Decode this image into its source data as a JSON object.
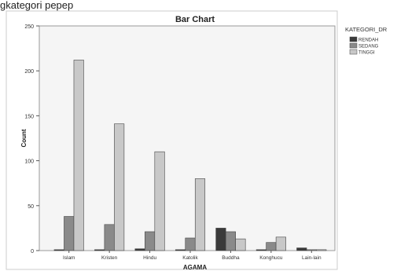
{
  "top_text": "gkategori pepep",
  "chart_data": {
    "type": "bar",
    "title": "Bar Chart",
    "xlabel": "AGAMA",
    "ylabel": "Count",
    "ylim": [
      0,
      250
    ],
    "yticks": [
      0,
      50,
      100,
      150,
      200,
      250
    ],
    "categories": [
      "Islam",
      "Kristen",
      "Hindu",
      "Katolik",
      "Buddha",
      "Konghucu",
      "Lain-lain"
    ],
    "legend_title": "KATEGORI_DR",
    "legend_position": "right",
    "series": [
      {
        "name": "RENDAH",
        "color": "#3a3a3a",
        "values": [
          1,
          1,
          2,
          1,
          25,
          1,
          3
        ]
      },
      {
        "name": "SEDANG",
        "color": "#8a8a8a",
        "values": [
          38,
          29,
          21,
          14,
          21,
          9,
          1
        ]
      },
      {
        "name": "TINGGI",
        "color": "#c8c8c8",
        "values": [
          212,
          141,
          110,
          80,
          13,
          15,
          1
        ]
      }
    ]
  }
}
